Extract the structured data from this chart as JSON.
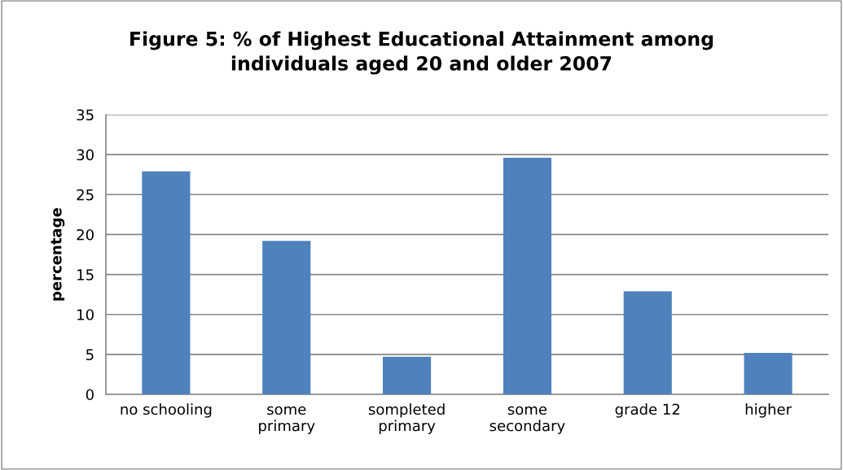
{
  "chart_data": {
    "type": "bar",
    "title": "Figure 5: % of Highest Educational Attainment among\nindividuals aged 20 and older 2007",
    "ylabel": "percentage",
    "categories": [
      "no schooling",
      "some\nprimary",
      "sompleted\nprimary",
      "some\nsecondary",
      "grade 12",
      "higher"
    ],
    "values": [
      27.9,
      19.2,
      4.7,
      29.6,
      12.9,
      5.2
    ],
    "color": "#4f81bd",
    "ylim": [
      0,
      35
    ],
    "yticks": [
      0,
      5,
      10,
      15,
      20,
      25,
      30,
      35
    ],
    "grid": "y"
  }
}
